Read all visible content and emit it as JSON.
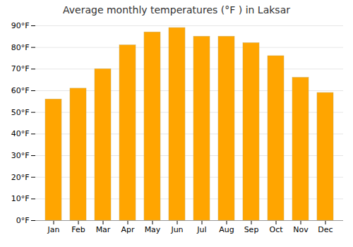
{
  "chart_data": {
    "type": "bar",
    "title": "Average monthly temperatures (°F ) in Laksar",
    "categories": [
      "Jan",
      "Feb",
      "Mar",
      "Apr",
      "May",
      "Jun",
      "Jul",
      "Aug",
      "Sep",
      "Oct",
      "Nov",
      "Dec"
    ],
    "values": [
      56,
      61,
      70,
      81,
      87,
      89,
      85,
      85,
      82,
      76,
      66,
      59
    ],
    "color": "#FFA500",
    "ylim": [
      0,
      90
    ],
    "yticks": [
      {
        "value": 0,
        "label": "0°F"
      },
      {
        "value": 10,
        "label": "10°F"
      },
      {
        "value": 20,
        "label": "20°F"
      },
      {
        "value": 30,
        "label": "30°F"
      },
      {
        "value": 40,
        "label": "40°F"
      },
      {
        "value": 50,
        "label": "50°F"
      },
      {
        "value": 60,
        "label": "60°F"
      },
      {
        "value": 70,
        "label": "70°F"
      },
      {
        "value": 80,
        "label": "80°F"
      },
      {
        "value": 90,
        "label": "90°F"
      }
    ],
    "grid": true
  }
}
